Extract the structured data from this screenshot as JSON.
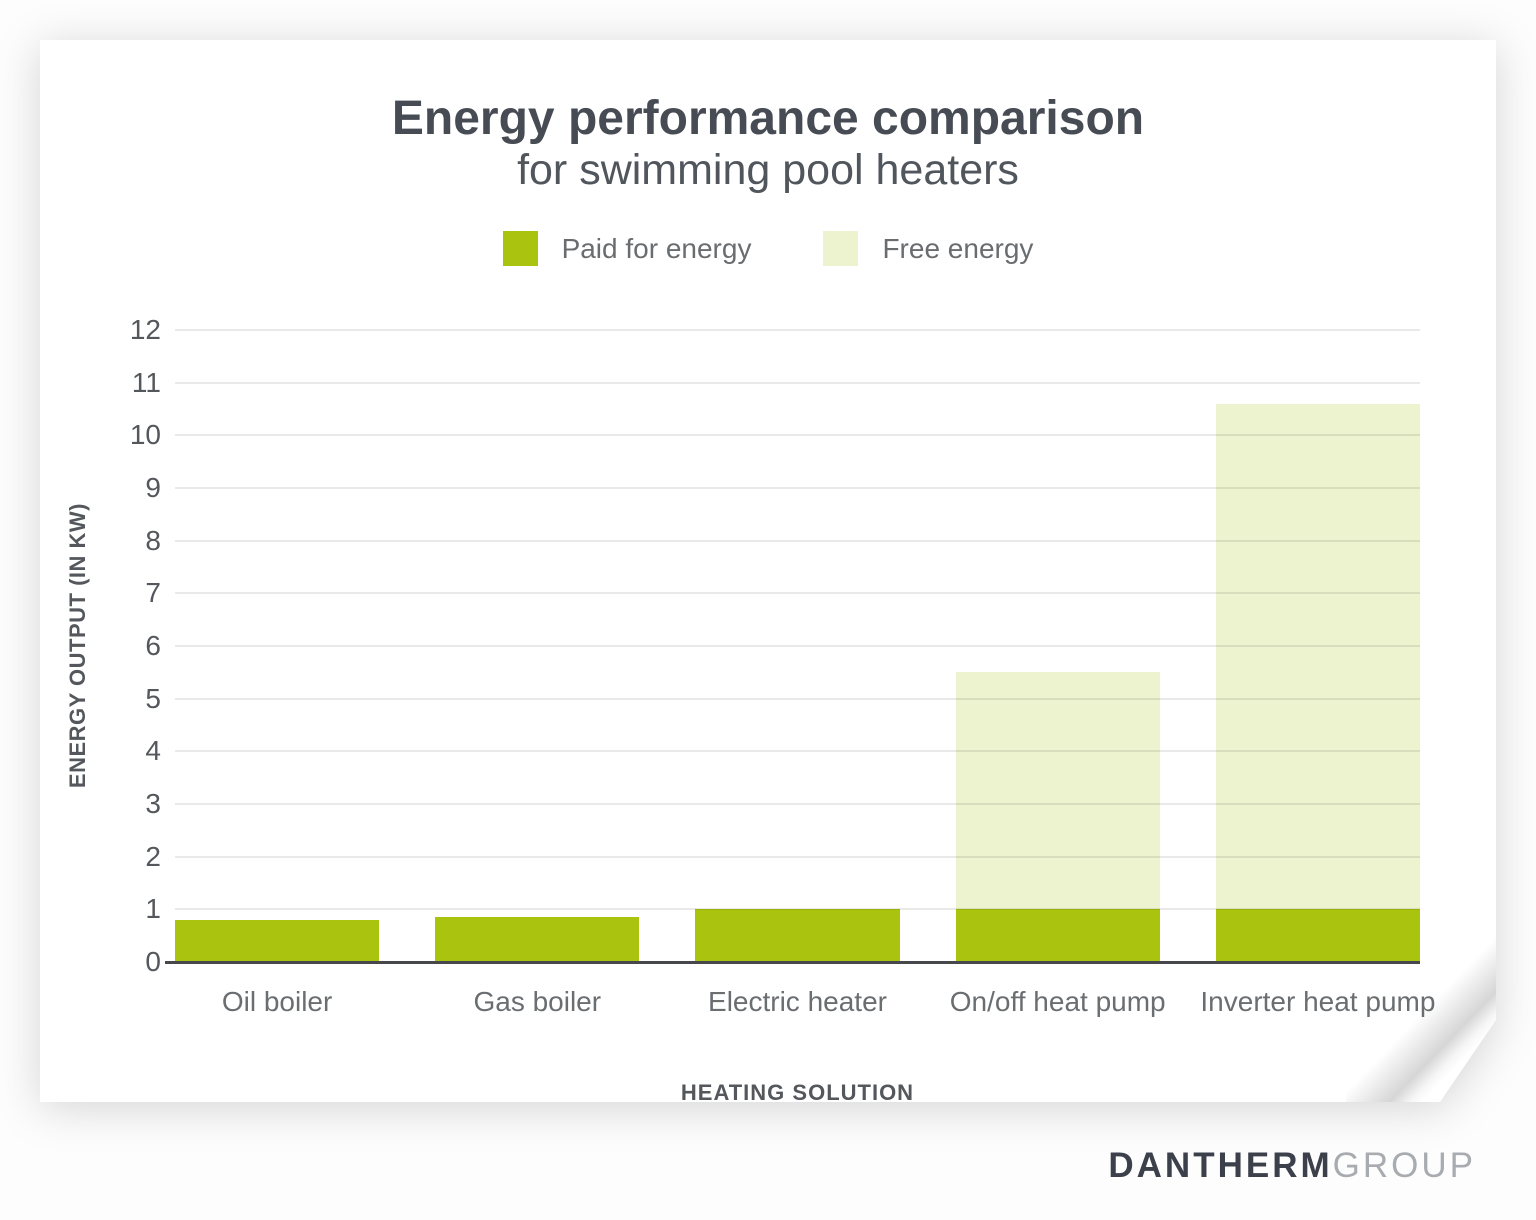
{
  "title": "Energy performance comparison",
  "subtitle": "for swimming pool heaters",
  "legend": {
    "items": [
      {
        "label": "Paid for energy",
        "color": "#a9c30e"
      },
      {
        "label": "Free energy",
        "color": "#edf2cf"
      }
    ]
  },
  "chart_data": {
    "type": "bar",
    "stacked": true,
    "title": "Energy performance comparison for swimming pool heaters",
    "categories": [
      "Oil boiler",
      "Gas boiler",
      "Electric heater",
      "On/off heat pump",
      "Inverter heat pump"
    ],
    "series": [
      {
        "name": "Paid for energy",
        "color": "#a9c30e",
        "values": [
          0.8,
          0.85,
          1.0,
          1.0,
          1.0
        ]
      },
      {
        "name": "Free energy",
        "color": "#edf2cf",
        "values": [
          0.0,
          0.0,
          0.0,
          4.5,
          9.6
        ]
      }
    ],
    "totals": [
      0.8,
      0.85,
      1.0,
      5.5,
      10.6
    ],
    "xlabel": "HEATING SOLUTION",
    "ylabel": "ENERGY OUTPUT (IN KW)",
    "ylim": [
      0,
      12
    ],
    "ytick_step": 1,
    "grid": true,
    "legend_position": "top"
  },
  "footer": {
    "brand_primary": "DANTHERM",
    "brand_secondary": "GROUP"
  }
}
